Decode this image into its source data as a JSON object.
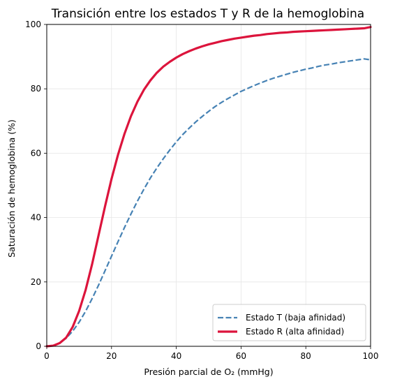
{
  "chart_data": {
    "type": "line",
    "title": "Transición entre los estados T y R de la hemoglobina",
    "xlabel": "Presión parcial de O₂ (mmHg)",
    "ylabel": "Saturación de hemoglobina (%)",
    "xlim": [
      0,
      100
    ],
    "ylim": [
      0,
      100
    ],
    "xticks": [
      0,
      20,
      40,
      60,
      80,
      100
    ],
    "yticks": [
      0,
      20,
      40,
      60,
      80,
      100
    ],
    "grid": true,
    "legend_position": "lower-right",
    "x": [
      0,
      2,
      4,
      6,
      8,
      10,
      12,
      14,
      16,
      18,
      20,
      22,
      24,
      26,
      28,
      30,
      32,
      34,
      36,
      38,
      40,
      42,
      44,
      46,
      48,
      50,
      52,
      54,
      56,
      58,
      60,
      62,
      64,
      66,
      68,
      70,
      72,
      74,
      76,
      78,
      80,
      82,
      84,
      86,
      88,
      90,
      92,
      94,
      96,
      98,
      100
    ],
    "series": [
      {
        "name": "Estado T (baja afinidad)",
        "style": "dashed",
        "color": "#4682b4",
        "values": [
          0,
          0.2,
          1.0,
          2.5,
          4.7,
          7.5,
          10.9,
          14.8,
          19.0,
          23.5,
          28.0,
          32.5,
          36.9,
          41.1,
          45.1,
          48.8,
          52.3,
          55.4,
          58.3,
          61.0,
          63.5,
          65.8,
          67.8,
          69.7,
          71.4,
          73.0,
          74.5,
          75.8,
          77.0,
          78.1,
          79.2,
          80.1,
          81.0,
          81.8,
          82.6,
          83.3,
          83.9,
          84.5,
          85.1,
          85.6,
          86.1,
          86.5,
          87.0,
          87.4,
          87.7,
          88.1,
          88.4,
          88.7,
          89.0,
          89.3,
          89.0
        ]
      },
      {
        "name": "Estado R (alta afinidad)",
        "style": "solid",
        "color": "#dc143c",
        "values": [
          0,
          0.2,
          1.0,
          2.7,
          6.0,
          11.0,
          17.5,
          25.5,
          34.5,
          43.5,
          52.0,
          59.5,
          66.0,
          71.5,
          76.0,
          79.7,
          82.6,
          85.0,
          86.9,
          88.4,
          89.7,
          90.8,
          91.7,
          92.5,
          93.2,
          93.8,
          94.3,
          94.8,
          95.2,
          95.6,
          95.9,
          96.2,
          96.5,
          96.7,
          97.0,
          97.2,
          97.4,
          97.5,
          97.7,
          97.8,
          97.9,
          98.0,
          98.1,
          98.2,
          98.3,
          98.4,
          98.5,
          98.6,
          98.7,
          98.8,
          99.2
        ]
      }
    ]
  }
}
